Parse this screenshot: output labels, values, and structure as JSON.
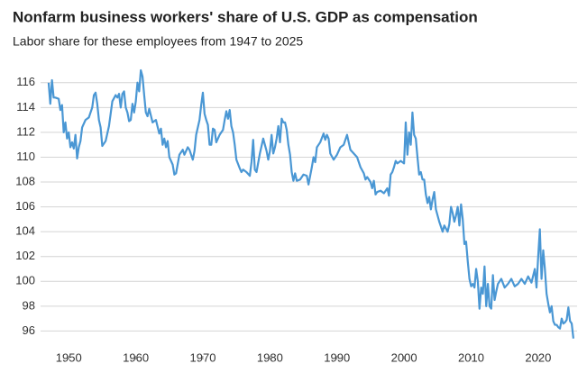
{
  "chart_data": {
    "type": "line",
    "title": "Nonfarm business workers' share of U.S. GDP as compensation",
    "subtitle": "Labor share for these employees from 1947 to 2025",
    "color": "#4a97d4",
    "grid": true,
    "xlim": [
      1945.8,
      2025.8
    ],
    "xticks": [
      1950,
      1960,
      1970,
      1980,
      1990,
      2000,
      2010,
      2020
    ],
    "ylim": [
      94,
      117
    ],
    "yticks": [
      96,
      98,
      100,
      102,
      104,
      106,
      108,
      110,
      112,
      114,
      116
    ],
    "x": [
      1947,
      1947.25,
      1947.5,
      1947.75,
      1948,
      1948.5,
      1948.75,
      1949,
      1949.25,
      1949.5,
      1949.75,
      1950,
      1950.25,
      1950.5,
      1950.75,
      1951,
      1951.25,
      1951.5,
      1951.75,
      1952,
      1952.5,
      1953,
      1953.5,
      1953.75,
      1954,
      1954.25,
      1954.5,
      1954.75,
      1955,
      1955.5,
      1956,
      1956.5,
      1957,
      1957.25,
      1957.5,
      1957.75,
      1958,
      1958.25,
      1958.5,
      1958.75,
      1959,
      1959.25,
      1959.5,
      1959.75,
      1960,
      1960.25,
      1960.5,
      1960.75,
      1961,
      1961.25,
      1961.5,
      1961.75,
      1962,
      1962.5,
      1963,
      1963.5,
      1963.75,
      1964,
      1964.25,
      1964.5,
      1964.75,
      1965,
      1965.5,
      1965.75,
      1966,
      1966.5,
      1967,
      1967.25,
      1967.75,
      1968,
      1968.5,
      1968.75,
      1969,
      1969.5,
      1969.75,
      1970,
      1970.25,
      1970.5,
      1970.75,
      1971,
      1971.25,
      1971.5,
      1971.75,
      1972,
      1972.5,
      1973,
      1973.25,
      1973.5,
      1973.75,
      1974,
      1974.25,
      1974.5,
      1974.75,
      1975,
      1975.5,
      1975.75,
      1976,
      1976.5,
      1977,
      1977.25,
      1977.5,
      1977.75,
      1978,
      1978.5,
      1979,
      1979.25,
      1979.5,
      1979.75,
      1980,
      1980.25,
      1980.5,
      1980.75,
      1981,
      1981.25,
      1981.5,
      1981.75,
      1982,
      1982.25,
      1982.5,
      1982.75,
      1983,
      1983.25,
      1983.5,
      1983.75,
      1984,
      1984.5,
      1985,
      1985.5,
      1985.75,
      1986,
      1986.25,
      1986.5,
      1986.75,
      1987,
      1987.5,
      1988,
      1988.25,
      1988.5,
      1988.75,
      1989,
      1989.5,
      1990,
      1990.5,
      1991,
      1991.5,
      1991.75,
      1992,
      1992.5,
      1993,
      1993.5,
      1994,
      1994.25,
      1994.5,
      1995,
      1995.25,
      1995.5,
      1995.75,
      1996,
      1996.5,
      1997,
      1997.5,
      1997.75,
      1998,
      1998.25,
      1998.5,
      1998.75,
      1999,
      1999.5,
      2000,
      2000.25,
      2000.5,
      2000.75,
      2001,
      2001.25,
      2001.5,
      2001.75,
      2002,
      2002.25,
      2002.5,
      2002.75,
      2003,
      2003.25,
      2003.5,
      2003.75,
      2004,
      2004.25,
      2004.5,
      2004.75,
      2005,
      2005.25,
      2005.5,
      2005.75,
      2006,
      2006.5,
      2006.75,
      2007,
      2007.25,
      2007.5,
      2007.75,
      2008,
      2008.25,
      2008.5,
      2008.75,
      2009,
      2009.25,
      2009.5,
      2009.75,
      2010,
      2010.25,
      2010.5,
      2010.75,
      2011,
      2011.25,
      2011.5,
      2011.75,
      2012,
      2012.25,
      2012.5,
      2012.75,
      2013,
      2013.25,
      2013.5,
      2013.75,
      2014,
      2014.5,
      2015,
      2015.5,
      2016,
      2016.5,
      2017,
      2017.5,
      2018,
      2018.5,
      2019,
      2019.5,
      2019.75,
      2020,
      2020.25,
      2020.5,
      2020.75,
      2021,
      2021.25,
      2021.5,
      2021.75,
      2022,
      2022.25,
      2022.5,
      2022.75,
      2023,
      2023.25,
      2023.5,
      2023.75,
      2024,
      2024.25,
      2024.5,
      2024.75,
      2025,
      2025.25
    ],
    "values": [
      116.0,
      114.3,
      116.2,
      114.8,
      114.8,
      114.7,
      113.8,
      114.2,
      112.0,
      112.8,
      111.5,
      112.0,
      110.8,
      111.2,
      110.7,
      111.8,
      109.9,
      110.8,
      111.3,
      112.4,
      113.0,
      113.2,
      114.0,
      115.0,
      115.2,
      114.3,
      113.0,
      112.4,
      110.9,
      111.3,
      112.5,
      114.5,
      115.0,
      114.8,
      115.1,
      114.0,
      115.1,
      115.3,
      114.0,
      113.6,
      112.9,
      113.0,
      114.3,
      113.6,
      114.5,
      116.0,
      115.3,
      117.0,
      116.5,
      115.0,
      113.6,
      113.3,
      113.9,
      112.8,
      113.0,
      111.9,
      112.3,
      111.0,
      111.5,
      110.8,
      111.3,
      110.0,
      109.4,
      108.6,
      108.7,
      110.2,
      110.6,
      110.2,
      110.8,
      110.6,
      109.8,
      110.5,
      111.8,
      113.0,
      114.2,
      115.2,
      113.5,
      113.0,
      112.6,
      111.0,
      111.0,
      112.3,
      112.2,
      111.2,
      111.8,
      112.2,
      113.0,
      113.7,
      113.1,
      113.8,
      112.5,
      112.0,
      111.0,
      109.8,
      109.1,
      108.8,
      109.0,
      108.8,
      108.5,
      109.6,
      111.4,
      109.0,
      108.8,
      110.3,
      111.5,
      111.0,
      110.5,
      109.8,
      110.5,
      111.8,
      110.3,
      110.8,
      111.5,
      112.5,
      111.2,
      113.1,
      112.8,
      112.8,
      112.2,
      111.0,
      110.2,
      108.8,
      108.1,
      108.7,
      108.1,
      108.2,
      108.6,
      108.5,
      107.8,
      108.5,
      109.2,
      110.0,
      109.6,
      110.8,
      111.2,
      111.9,
      111.4,
      111.8,
      111.5,
      110.3,
      109.8,
      110.2,
      110.8,
      111.0,
      111.8,
      111.2,
      110.6,
      110.3,
      110.0,
      109.2,
      108.7,
      108.2,
      108.4,
      108.0,
      107.5,
      108.1,
      107.0,
      107.2,
      107.3,
      107.1,
      107.5,
      106.9,
      108.6,
      108.8,
      109.2,
      109.7,
      109.5,
      109.7,
      109.5,
      112.8,
      110.2,
      112.0,
      111.0,
      113.6,
      111.8,
      111.5,
      110.0,
      108.6,
      108.8,
      108.2,
      108.2,
      107.0,
      106.3,
      106.8,
      105.8,
      106.6,
      107.2,
      105.8,
      105.3,
      104.8,
      104.4,
      104.0,
      104.5,
      104.0,
      104.6,
      106.0,
      105.5,
      104.8,
      105.3,
      106.0,
      104.5,
      106.2,
      105.0,
      103.0,
      103.2,
      101.6,
      100.2,
      99.6,
      99.8,
      99.5,
      101.0,
      100.0,
      97.8,
      99.5,
      99.0,
      101.2,
      98.0,
      99.8,
      98.0,
      97.8,
      100.5,
      98.5,
      99.2,
      99.8,
      100.2,
      99.5,
      99.8,
      100.2,
      99.6,
      99.8,
      100.2,
      99.8,
      100.4,
      99.9,
      101.0,
      99.5,
      102.0,
      104.2,
      100.2,
      102.5,
      101.0,
      99.0,
      98.2,
      97.5,
      98.0,
      96.8,
      96.5,
      96.5,
      96.3,
      96.2,
      97.0,
      96.6,
      96.7,
      96.9,
      97.9,
      96.8,
      96.6,
      95.4
    ]
  }
}
